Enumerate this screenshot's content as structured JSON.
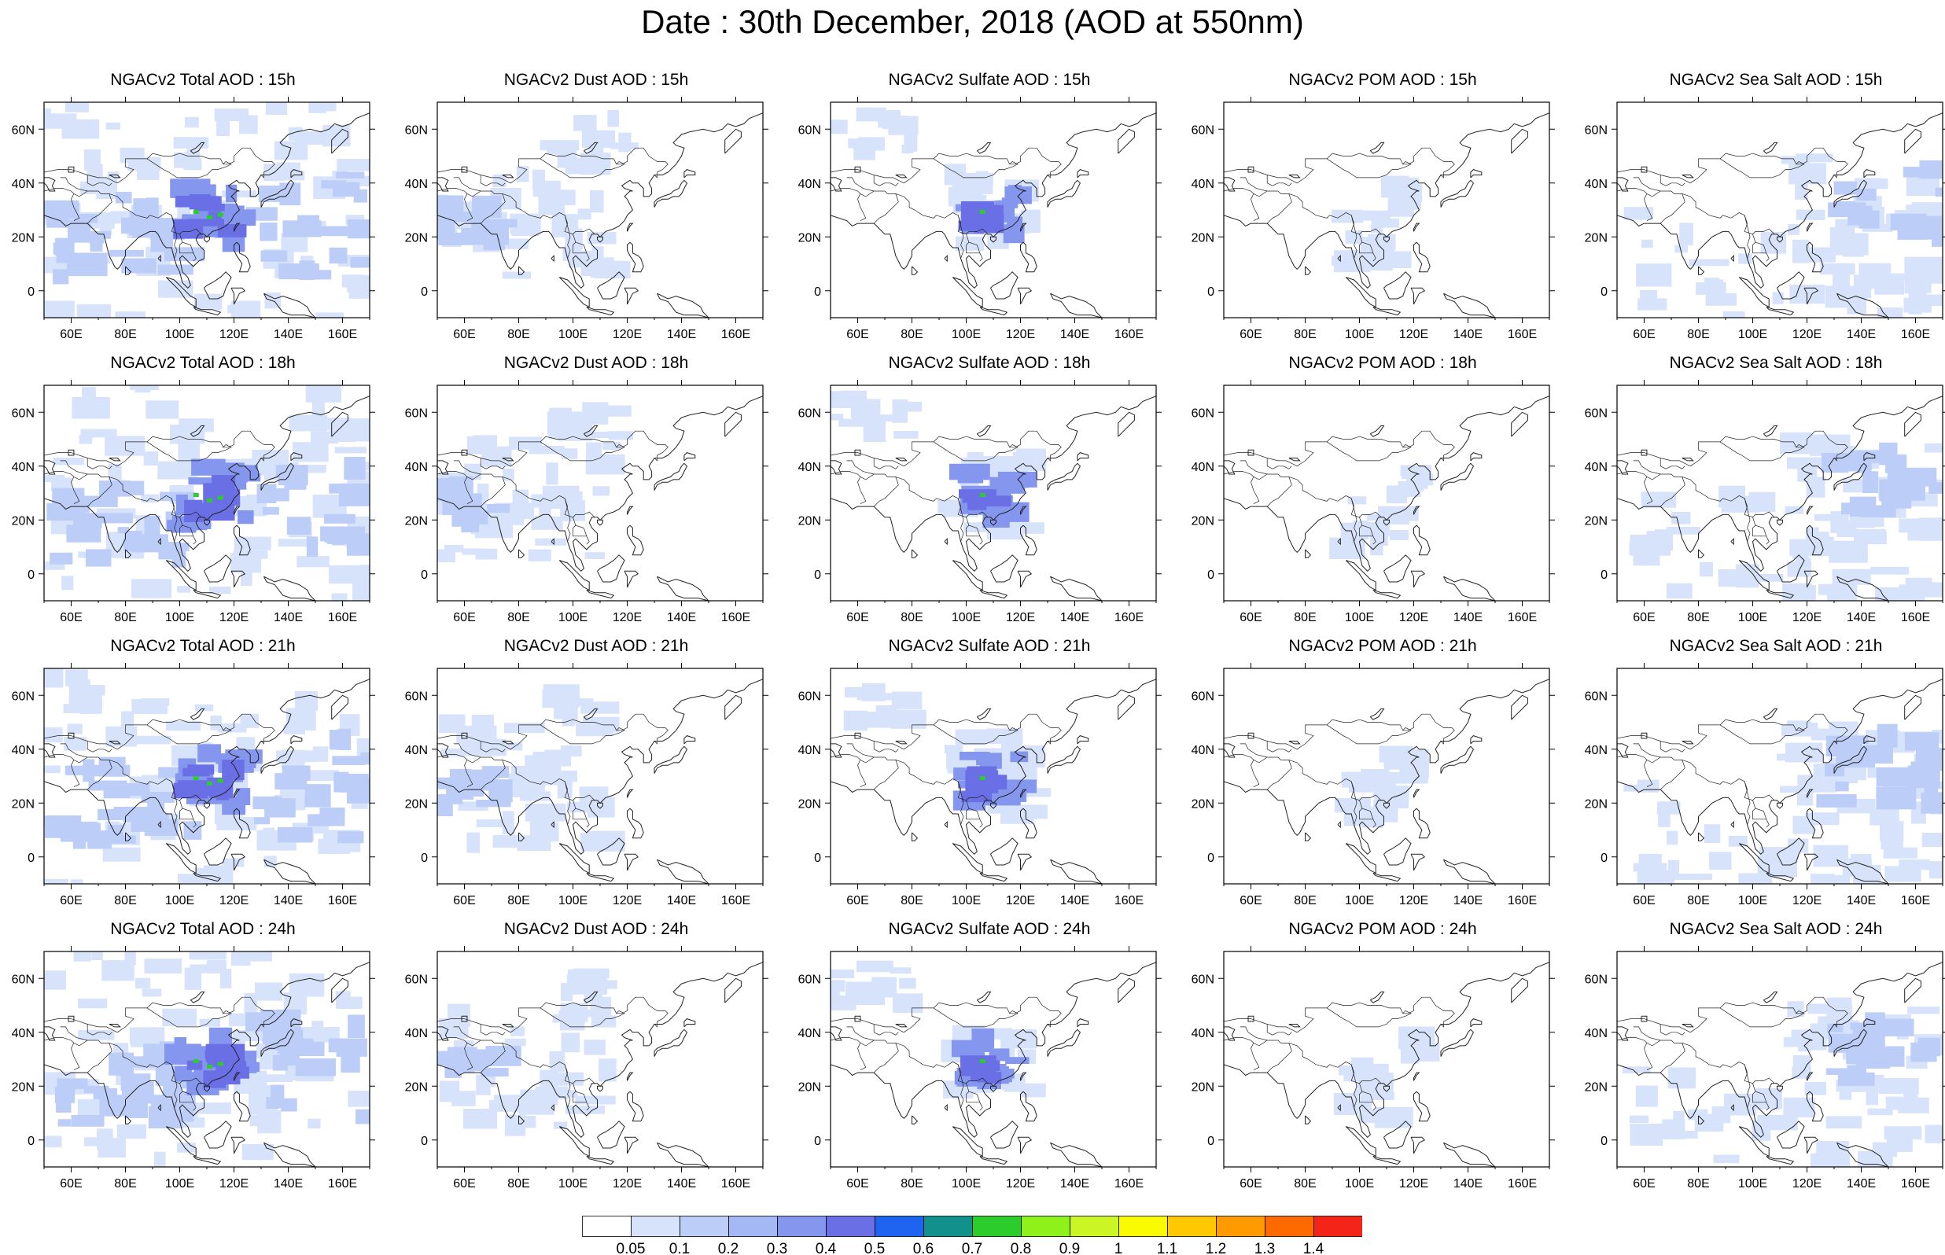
{
  "title": "Date : 30th December, 2018 (AOD at 550nm)",
  "map": {
    "lon_ticks": [
      "60E",
      "80E",
      "100E",
      "120E",
      "140E",
      "160E"
    ],
    "lat_ticks": [
      "60N",
      "40N",
      "20N",
      "0"
    ],
    "extent": {
      "lon": [
        50,
        170
      ],
      "lat": [
        -10,
        70
      ]
    },
    "coastline_color": "#222222",
    "field_description_colors": {
      "low": "#d7e2fb",
      "mid": "#a9bdf4",
      "high": "#6f78e6",
      "peak": "#3fa44c"
    }
  },
  "panels": [
    {
      "title": "NGACv2 Total AOD : 15h",
      "species": "total",
      "hour": "15h"
    },
    {
      "title": "NGACv2 Dust AOD : 15h",
      "species": "dust",
      "hour": "15h"
    },
    {
      "title": "NGACv2 Sulfate AOD : 15h",
      "species": "sulfate",
      "hour": "15h"
    },
    {
      "title": "NGACv2 POM AOD : 15h",
      "species": "pom",
      "hour": "15h"
    },
    {
      "title": "NGACv2 Sea Salt AOD : 15h",
      "species": "seasalt",
      "hour": "15h"
    },
    {
      "title": "NGACv2 Total AOD : 18h",
      "species": "total",
      "hour": "18h"
    },
    {
      "title": "NGACv2 Dust AOD : 18h",
      "species": "dust",
      "hour": "18h"
    },
    {
      "title": "NGACv2 Sulfate AOD : 18h",
      "species": "sulfate",
      "hour": "18h"
    },
    {
      "title": "NGACv2 POM AOD : 18h",
      "species": "pom",
      "hour": "18h"
    },
    {
      "title": "NGACv2 Sea Salt AOD : 18h",
      "species": "seasalt",
      "hour": "18h"
    },
    {
      "title": "NGACv2 Total AOD : 21h",
      "species": "total",
      "hour": "21h"
    },
    {
      "title": "NGACv2 Dust AOD : 21h",
      "species": "dust",
      "hour": "21h"
    },
    {
      "title": "NGACv2 Sulfate AOD : 21h",
      "species": "sulfate",
      "hour": "21h"
    },
    {
      "title": "NGACv2 POM AOD : 21h",
      "species": "pom",
      "hour": "21h"
    },
    {
      "title": "NGACv2 Sea Salt AOD : 21h",
      "species": "seasalt",
      "hour": "21h"
    },
    {
      "title": "NGACv2 Total AOD : 24h",
      "species": "total",
      "hour": "24h"
    },
    {
      "title": "NGACv2 Dust AOD : 24h",
      "species": "dust",
      "hour": "24h"
    },
    {
      "title": "NGACv2 Sulfate AOD : 24h",
      "species": "sulfate",
      "hour": "24h"
    },
    {
      "title": "NGACv2 POM AOD : 24h",
      "species": "pom",
      "hour": "24h"
    },
    {
      "title": "NGACv2 Sea Salt  AOD : 24h",
      "species": "seasalt",
      "hour": "24h"
    }
  ],
  "colorbar": {
    "labels": [
      "0.05",
      "0.1",
      "0.2",
      "0.3",
      "0.4",
      "0.5",
      "0.6",
      "0.7",
      "0.8",
      "0.9",
      "1",
      "1.1",
      "1.2",
      "1.3",
      "1.4"
    ],
    "colors": [
      "#ffffff",
      "#d7e2fb",
      "#bccdf8",
      "#a4b8f5",
      "#8596ee",
      "#6a6fe5",
      "#1e64f0",
      "#12908c",
      "#2ccc2c",
      "#8ef21a",
      "#ccf526",
      "#fafa00",
      "#ffc800",
      "#ff9a00",
      "#ff6a00",
      "#f42418"
    ]
  }
}
